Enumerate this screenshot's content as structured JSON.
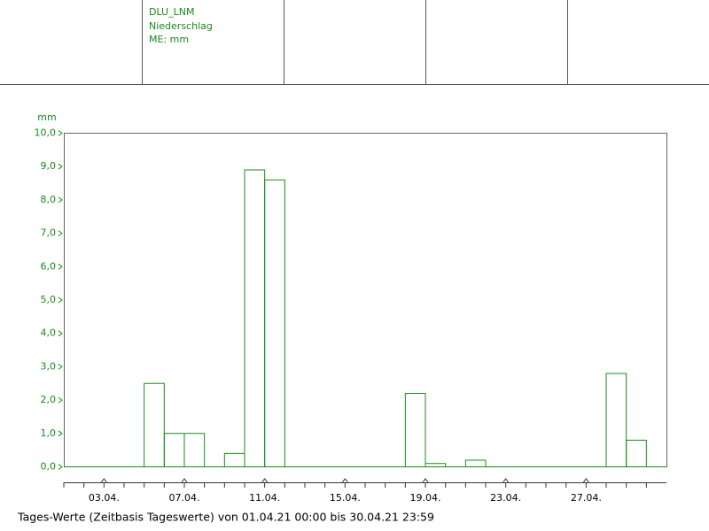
{
  "header": {
    "lines": [
      "DLU_LNM",
      "Niederschlag",
      "ME: mm"
    ]
  },
  "chart_data": {
    "type": "bar",
    "ylabel": "mm",
    "footnote": "Tages-Werte (Zeitbasis Tageswerte) von 01.04.21 00:00 bis 30.04.21 23:59",
    "categories": [
      null,
      null,
      "03.04.",
      null,
      null,
      null,
      "07.04.",
      null,
      null,
      null,
      "11.04.",
      null,
      null,
      null,
      "15.04.",
      null,
      null,
      null,
      "19.04.",
      null,
      null,
      null,
      "23.04.",
      null,
      null,
      null,
      "27.04.",
      null,
      null,
      null
    ],
    "values": [
      0,
      0,
      0,
      0,
      2.5,
      1.0,
      1.0,
      0,
      0.4,
      8.9,
      8.6,
      0,
      0,
      0,
      0,
      0,
      0,
      2.2,
      0.1,
      0,
      0.2,
      0,
      0,
      0,
      0,
      0,
      0,
      2.8,
      0.8,
      0
    ],
    "color": "#1a8a1a",
    "ylim": [
      0,
      10
    ],
    "yticks": [
      {
        "value": 0,
        "label": "0,0"
      },
      {
        "value": 1,
        "label": "1,0"
      },
      {
        "value": 2,
        "label": "2,0"
      },
      {
        "value": 3,
        "label": "3,0"
      },
      {
        "value": 4,
        "label": "4,0"
      },
      {
        "value": 5,
        "label": "5,0"
      },
      {
        "value": 6,
        "label": "6,0"
      },
      {
        "value": 7,
        "label": "7,0"
      },
      {
        "value": 8,
        "label": "8,0"
      },
      {
        "value": 9,
        "label": "9,0"
      },
      {
        "value": 10,
        "label": "10,0"
      }
    ]
  }
}
